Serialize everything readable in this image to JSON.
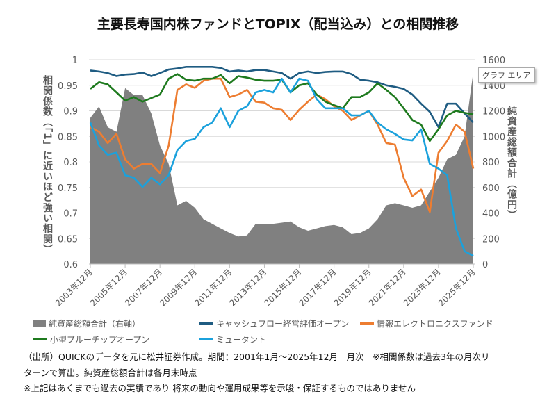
{
  "title": "主要長寿国内株ファンドとTOPIX（配当込み）との相関推移",
  "tooltip": "グラフ エリア",
  "chart_data": {
    "type": "line+area",
    "title": "主要長寿国内株ファンドとTOPIX（配当込み）との相関推移",
    "ylabel": "相関係数（「1」に近いほど強い相関）",
    "y2label": "純資産総額合計（億円）",
    "ylim": [
      0.6,
      1
    ],
    "y2lim": [
      0,
      1600
    ],
    "yticks": [
      "1",
      "0.95",
      "0.9",
      "0.85",
      "0.8",
      "0.75",
      "0.7",
      "0.65",
      "0.6"
    ],
    "y2ticks": [
      "1600",
      "1400",
      "1200",
      "1000",
      "800",
      "600",
      "400",
      "200",
      "0"
    ],
    "xticks": [
      "2003年12月",
      "2005年12月",
      "2007年12月",
      "2009年12月",
      "2011年12月",
      "2013年12月",
      "2015年12月",
      "2017年12月",
      "2019年12月",
      "2021年12月",
      "2023年12月",
      "2025年12月"
    ],
    "grid": true,
    "legend_position": "bottom",
    "x_start": "2003-12",
    "x_step_months": 6,
    "area": {
      "name": "純資産総額合計（右軸）",
      "color": "#808080",
      "values": [
        1145,
        1234,
        1072,
        1036,
        1378,
        1324,
        1324,
        1180,
        928,
        784,
        460,
        495,
        441,
        351,
        315,
        279,
        243,
        216,
        225,
        315,
        315,
        315,
        324,
        333,
        288,
        261,
        279,
        297,
        306,
        288,
        234,
        243,
        279,
        351,
        460,
        477,
        460,
        441,
        460,
        568,
        676,
        820,
        856,
        1000,
        1505
      ]
    },
    "series": [
      {
        "name": "キャッシュフロー経営評価オープン",
        "color": "#1f5c82",
        "values": [
          0.979,
          0.977,
          0.974,
          0.968,
          0.971,
          0.972,
          0.975,
          0.968,
          0.974,
          0.981,
          0.983,
          0.986,
          0.986,
          0.986,
          0.986,
          0.984,
          0.977,
          0.979,
          0.977,
          0.98,
          0.98,
          0.977,
          0.974,
          0.963,
          0.974,
          0.977,
          0.974,
          0.976,
          0.977,
          0.977,
          0.972,
          0.961,
          0.959,
          0.956,
          0.95,
          0.947,
          0.943,
          0.932,
          0.914,
          0.898,
          0.868,
          0.914,
          0.914,
          0.895,
          0.877
        ]
      },
      {
        "name": "情報エレクトロニクスファンド",
        "color": "#ed7d31",
        "values": [
          0.868,
          0.859,
          0.837,
          0.855,
          0.805,
          0.787,
          0.796,
          0.796,
          0.778,
          0.832,
          0.941,
          0.952,
          0.945,
          0.959,
          0.963,
          0.963,
          0.927,
          0.932,
          0.941,
          0.918,
          0.916,
          0.905,
          0.902,
          0.882,
          0.902,
          0.918,
          0.932,
          0.923,
          0.909,
          0.9,
          0.882,
          0.891,
          0.9,
          0.873,
          0.837,
          0.834,
          0.769,
          0.733,
          0.746,
          0.702,
          0.818,
          0.841,
          0.873,
          0.859,
          0.787
        ]
      },
      {
        "name": "小型ブルーチップオープン",
        "color": "#1e7a1e",
        "values": [
          0.943,
          0.956,
          0.952,
          0.936,
          0.92,
          0.927,
          0.918,
          0.925,
          0.932,
          0.963,
          0.972,
          0.961,
          0.959,
          0.963,
          0.963,
          0.97,
          0.954,
          0.968,
          0.965,
          0.961,
          0.959,
          0.959,
          0.961,
          0.936,
          0.95,
          0.954,
          0.932,
          0.918,
          0.911,
          0.905,
          0.927,
          0.927,
          0.936,
          0.954,
          0.941,
          0.927,
          0.905,
          0.882,
          0.873,
          0.841,
          0.864,
          0.891,
          0.9,
          0.896,
          0.893
        ]
      },
      {
        "name": "ミュータント",
        "color": "#1ba1dc",
        "values": [
          0.877,
          0.832,
          0.814,
          0.818,
          0.774,
          0.769,
          0.751,
          0.769,
          0.756,
          0.774,
          0.823,
          0.841,
          0.845,
          0.868,
          0.877,
          0.905,
          0.868,
          0.9,
          0.909,
          0.936,
          0.941,
          0.936,
          0.963,
          0.936,
          0.963,
          0.959,
          0.923,
          0.905,
          0.905,
          0.905,
          0.891,
          0.891,
          0.9,
          0.877,
          0.864,
          0.855,
          0.844,
          0.842,
          0.864,
          0.796,
          0.787,
          0.774,
          0.67,
          0.625,
          0.616
        ]
      }
    ]
  },
  "notes": [
    "（出所）QUICKのデータを元に松井証券作成。期間：2001年1月～2025年12月　月次　※相関係数は過去3年の月次リ",
    "ターンで算出。純資産総額合計は各月末時点",
    "※上記はあくまでも過去の実績であり 将来の動向や運用成果等を示唆・保証するものではありません"
  ]
}
